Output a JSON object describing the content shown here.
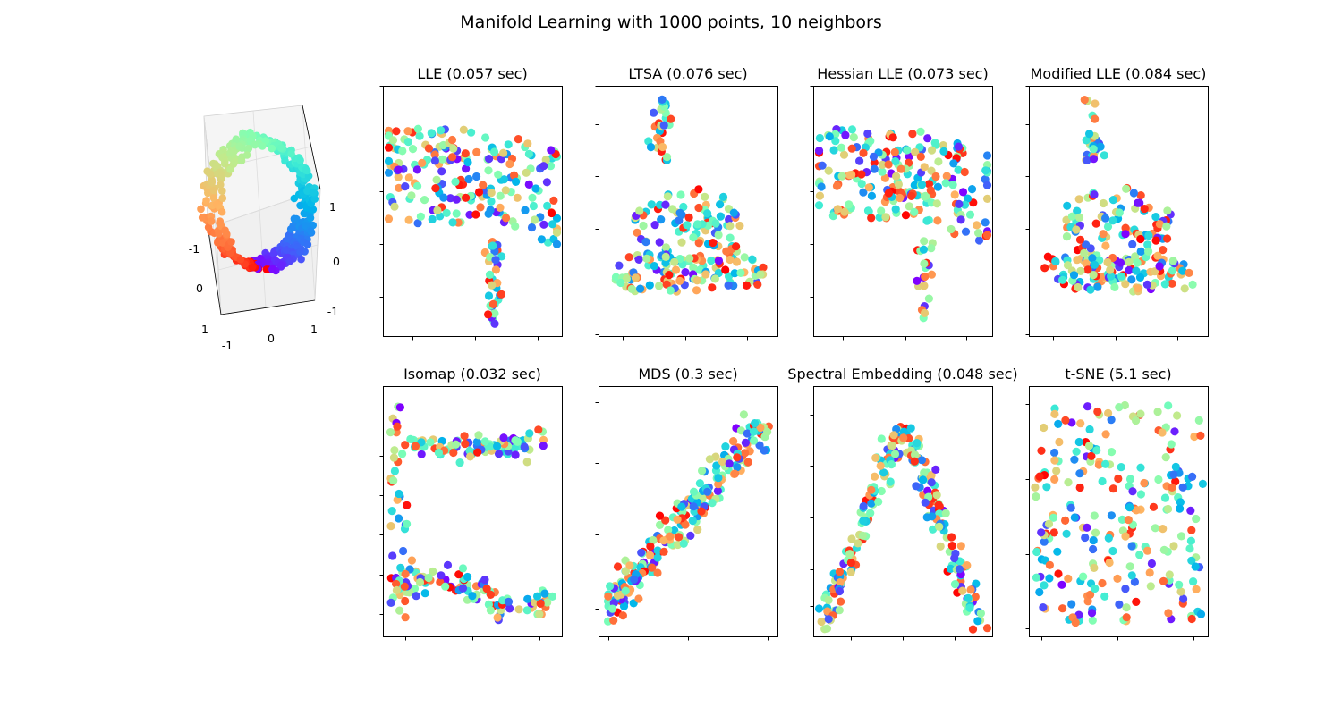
{
  "figure": {
    "title": "Manifold Learning with 1000 points, 10 neighbors"
  },
  "colormap": [
    "#8000ff",
    "#4062fa",
    "#00b5eb",
    "#40ecd4",
    "#80ffb4",
    "#c0eb8d",
    "#ffb462",
    "#ff6232",
    "#ff0000"
  ],
  "chart_data": [
    {
      "type": "scatter3d",
      "name": "S-curve",
      "x_ticks": [
        "-1",
        "0",
        "1"
      ],
      "y_ticks": [
        "-1",
        "0",
        "1"
      ],
      "z_ticks": [
        "-1",
        "0",
        "1"
      ],
      "xlim": [
        -1,
        1
      ],
      "ylim": [
        -1,
        1
      ],
      "zlim": [
        -1,
        1
      ],
      "grid": true
    },
    {
      "type": "scatter",
      "title": "LLE (0.057 sec)",
      "shape": "triangle-spike",
      "grid": false
    },
    {
      "type": "scatter",
      "title": "LTSA (0.076 sec)",
      "shape": "funnel",
      "grid": false
    },
    {
      "type": "scatter",
      "title": "Hessian LLE (0.073 sec)",
      "shape": "triangle-spike",
      "grid": false
    },
    {
      "type": "scatter",
      "title": "Modified LLE (0.084 sec)",
      "shape": "funnel",
      "grid": false
    },
    {
      "type": "scatter",
      "title": "Isomap (0.032 sec)",
      "shape": "two-bands",
      "grid": false
    },
    {
      "type": "scatter",
      "title": "MDS (0.3 sec)",
      "shape": "diagonal",
      "grid": false
    },
    {
      "type": "scatter",
      "title": "Spectral Embedding (0.048 sec)",
      "shape": "v-shape",
      "grid": false
    },
    {
      "type": "scatter",
      "title": "t-SNE (5.1 sec)",
      "shape": "clusters",
      "grid": false
    }
  ]
}
